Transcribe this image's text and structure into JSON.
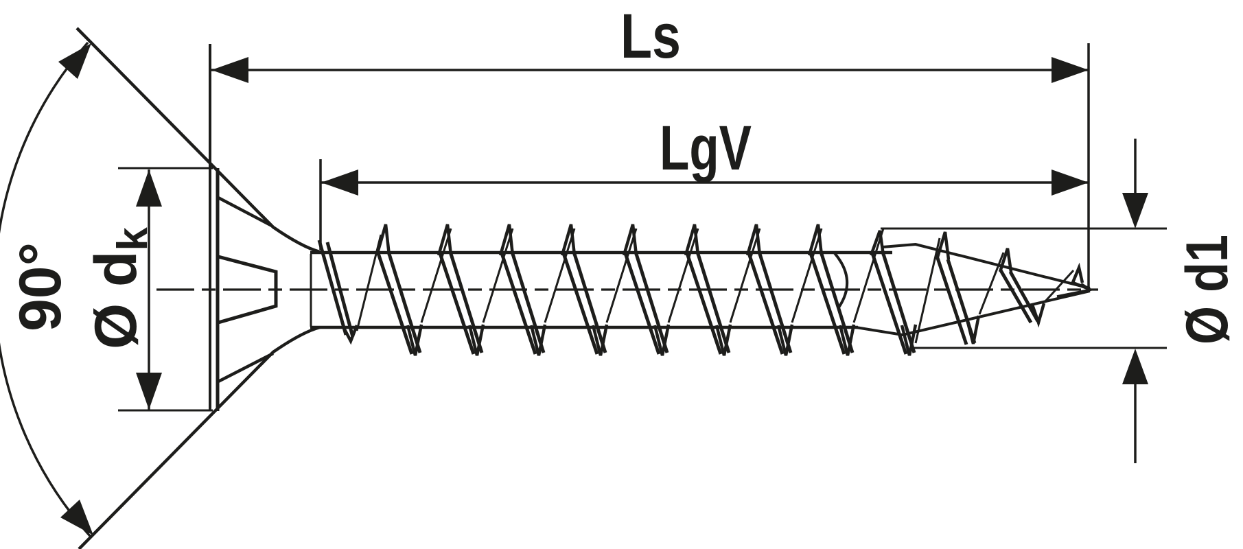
{
  "drawing": {
    "type": "technical-drawing-countersunk-screw",
    "background_color": "#ffffff",
    "line_color": "#1d1d1b",
    "labels": {
      "total_length": "Ls",
      "thread_length": "LgV",
      "head_angle": "90°",
      "head_diameter_main": "Ø d",
      "head_diameter_sub": "k",
      "thread_diameter": "Ø d1"
    }
  }
}
